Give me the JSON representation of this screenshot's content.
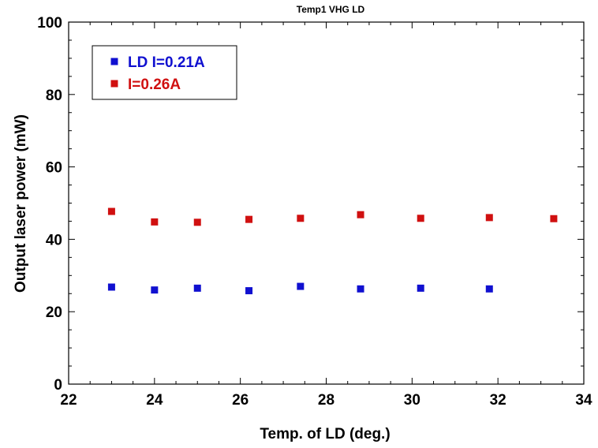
{
  "chart_data": {
    "type": "scatter",
    "title": "Temp1 VHG LD",
    "xlabel": "Temp. of LD (deg.)",
    "ylabel": "Output laser power (mW)",
    "xlim": [
      22,
      34
    ],
    "ylim": [
      0,
      100
    ],
    "xticks": [
      22,
      24,
      26,
      28,
      30,
      32,
      34
    ],
    "yticks": [
      0,
      20,
      40,
      60,
      80,
      100
    ],
    "grid": false,
    "legend_position": "top-left",
    "series": [
      {
        "name": "LD I=0.21A",
        "color": "#1010d0",
        "marker": "square",
        "x": [
          23.0,
          24.0,
          25.0,
          26.2,
          27.4,
          28.8,
          30.2,
          31.8
        ],
        "y": [
          26.8,
          26.0,
          26.5,
          25.8,
          27.0,
          26.3,
          26.5,
          26.3
        ]
      },
      {
        "name": "I=0.26A",
        "color": "#d01010",
        "marker": "square",
        "x": [
          23.0,
          24.0,
          25.0,
          26.2,
          27.4,
          28.8,
          30.2,
          31.8,
          33.3
        ],
        "y": [
          47.7,
          44.8,
          44.7,
          45.5,
          45.8,
          46.8,
          45.8,
          46.0,
          45.7
        ]
      }
    ]
  }
}
